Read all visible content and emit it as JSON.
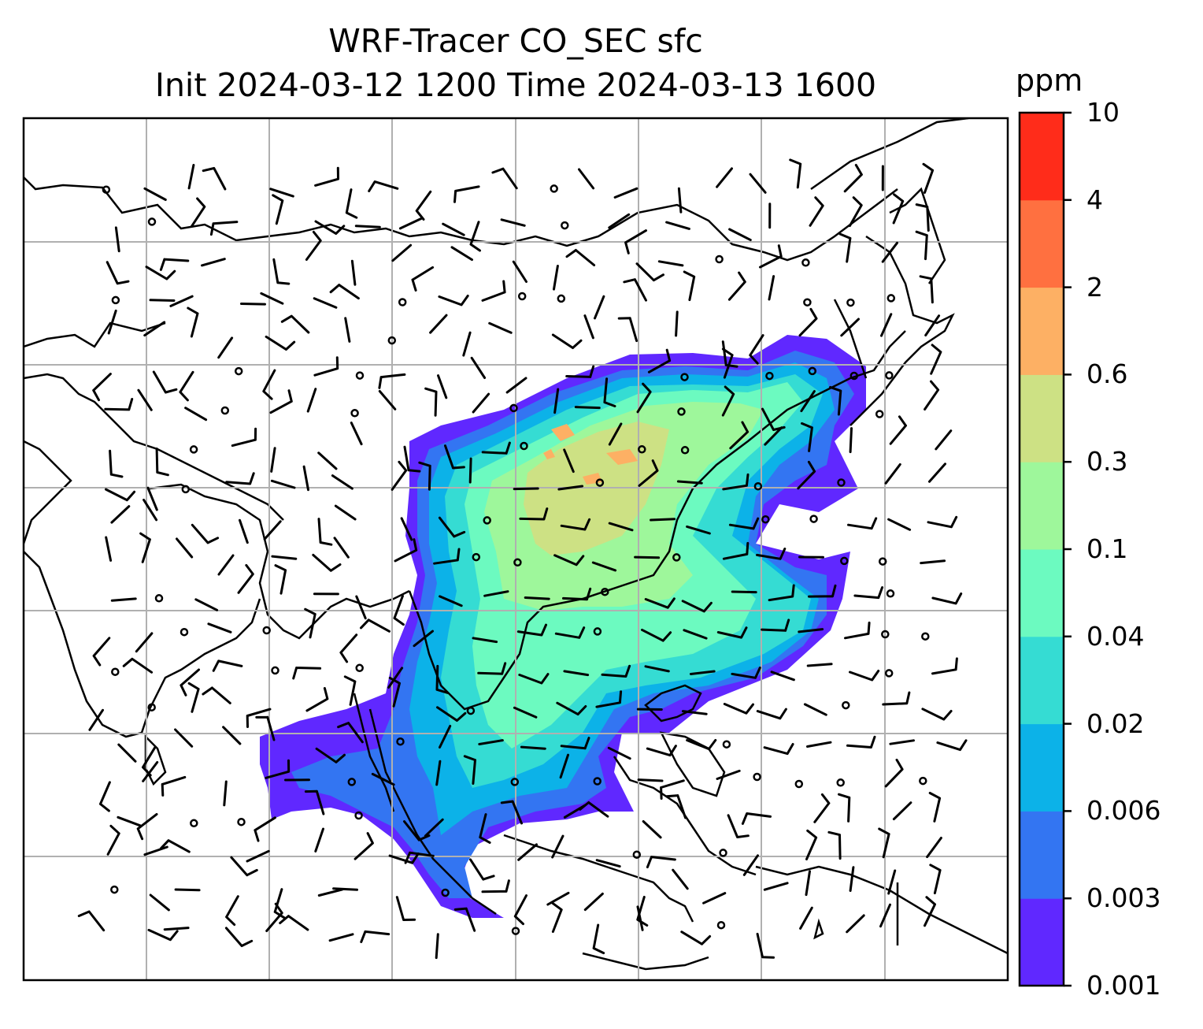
{
  "title": {
    "line1": "WRF-Tracer CO_SEC sfc",
    "line2": "Init 2024-03-12 1200 Time 2024-03-13 1600"
  },
  "colorbar": {
    "unit": "ppm",
    "levels": [
      "0.001",
      "0.003",
      "0.006",
      "0.02",
      "0.04",
      "0.1",
      "0.3",
      "0.6",
      "2",
      "4",
      "10"
    ],
    "colors": [
      "#6028ff",
      "#3375f2",
      "#0cb2e8",
      "#35dcd3",
      "#6cfac0",
      "#9ef79b",
      "#cde184",
      "#fdb064",
      "#ff7040",
      "#ff2c1a"
    ]
  },
  "map": {
    "region": "East and Southeast Asia",
    "field": "CO_SEC tracer concentration",
    "overlay": "wind barbs"
  }
}
